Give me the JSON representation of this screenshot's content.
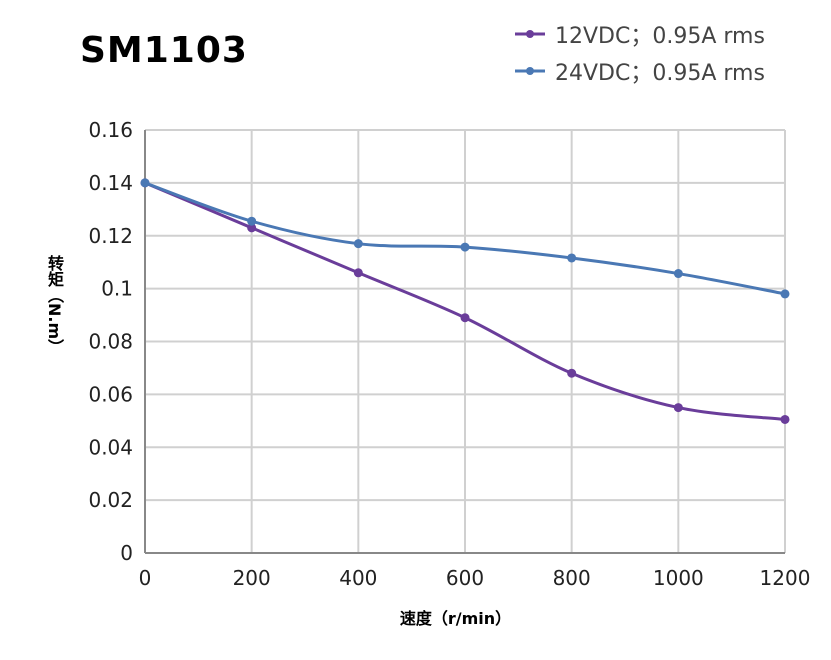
{
  "chart_data": {
    "type": "line",
    "title": "SM1103",
    "xlabel": "速度（r/min）",
    "ylabel": "转矩（N.m）",
    "xlim": [
      0,
      1200
    ],
    "ylim": [
      0,
      0.16
    ],
    "xticks": [
      "0",
      "200",
      "400",
      "600",
      "800",
      "1000",
      "1200"
    ],
    "yticks": [
      "0",
      "0.02",
      "0.04",
      "0.06",
      "0.08",
      "0.1",
      "0.12",
      "0.14",
      "0.16"
    ],
    "grid": true,
    "legend": "top-right",
    "x": [
      0,
      200,
      400,
      600,
      800,
      1000,
      1200
    ],
    "series": [
      {
        "name": "12VDC；0.95A rms",
        "color": "#6a3d9a",
        "values": [
          0.14,
          0.123,
          0.106,
          0.089,
          0.068,
          0.055,
          0.0505
        ]
      },
      {
        "name": "24VDC；0.95A rms",
        "color": "#4a78b4",
        "values": [
          0.14,
          0.1255,
          0.117,
          0.1157,
          0.1116,
          0.1057,
          0.098
        ]
      }
    ]
  }
}
